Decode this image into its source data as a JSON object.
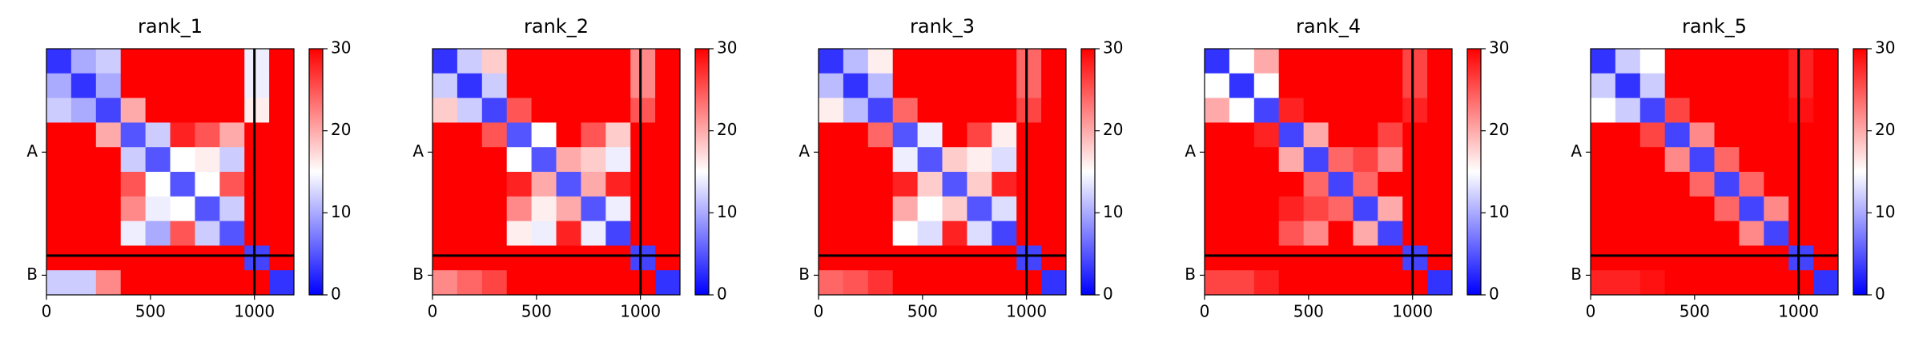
{
  "chart_data": [
    {
      "type": "heatmap",
      "title": "rank_1",
      "xlim": [
        0,
        1190
      ],
      "ylim": [
        1190,
        0
      ],
      "xticks": [
        0,
        500,
        1000
      ],
      "yticks": [
        {
          "value": 500,
          "label": "A"
        },
        {
          "value": 1095,
          "label": "B"
        }
      ],
      "dividers": [
        1000
      ],
      "colormap": [
        "#0000ff",
        "#ffffff",
        "#ff0000"
      ],
      "clim": [
        0,
        30
      ],
      "cticks": [
        0,
        10,
        20,
        30
      ],
      "values": [
        [
          3,
          10,
          12,
          30,
          30,
          30,
          30,
          30,
          14,
          30
        ],
        [
          10,
          3,
          10,
          30,
          30,
          30,
          30,
          30,
          14,
          30
        ],
        [
          12,
          10,
          4,
          20,
          30,
          30,
          30,
          30,
          16,
          30
        ],
        [
          30,
          30,
          20,
          5,
          12,
          28,
          25,
          20,
          30,
          30
        ],
        [
          30,
          30,
          30,
          12,
          5,
          15,
          16,
          12,
          30,
          30
        ],
        [
          30,
          30,
          30,
          25,
          15,
          5,
          15,
          25,
          30,
          30
        ],
        [
          30,
          30,
          30,
          22,
          14,
          15,
          5,
          12,
          30,
          30
        ],
        [
          30,
          30,
          30,
          14,
          10,
          25,
          12,
          5,
          30,
          30
        ],
        [
          30,
          30,
          30,
          30,
          30,
          30,
          30,
          30,
          4,
          30
        ],
        [
          12,
          12,
          22,
          30,
          30,
          30,
          30,
          30,
          30,
          3
        ]
      ]
    },
    {
      "type": "heatmap",
      "title": "rank_2",
      "xlim": [
        0,
        1190
      ],
      "ylim": [
        1190,
        0
      ],
      "xticks": [
        0,
        500,
        1000
      ],
      "yticks": [
        {
          "value": 500,
          "label": "A"
        },
        {
          "value": 1095,
          "label": "B"
        }
      ],
      "dividers": [
        1000
      ],
      "colormap": [
        "#0000ff",
        "#ffffff",
        "#ff0000"
      ],
      "clim": [
        0,
        30
      ],
      "cticks": [
        0,
        10,
        20,
        30
      ],
      "values": [
        [
          3,
          12,
          18,
          30,
          30,
          30,
          30,
          30,
          22,
          30
        ],
        [
          12,
          3,
          12,
          30,
          30,
          30,
          30,
          30,
          22,
          30
        ],
        [
          18,
          12,
          4,
          25,
          30,
          30,
          30,
          30,
          25,
          30
        ],
        [
          30,
          30,
          25,
          5,
          15,
          30,
          25,
          18,
          30,
          30
        ],
        [
          30,
          30,
          30,
          15,
          5,
          20,
          18,
          14,
          30,
          30
        ],
        [
          30,
          30,
          30,
          28,
          20,
          5,
          20,
          28,
          30,
          30
        ],
        [
          30,
          30,
          30,
          22,
          16,
          20,
          5,
          14,
          30,
          30
        ],
        [
          30,
          30,
          30,
          16,
          14,
          28,
          14,
          4,
          30,
          30
        ],
        [
          30,
          30,
          30,
          30,
          30,
          30,
          30,
          30,
          4,
          30
        ],
        [
          22,
          24,
          26,
          30,
          30,
          30,
          30,
          30,
          30,
          3
        ]
      ]
    },
    {
      "type": "heatmap",
      "title": "rank_3",
      "xlim": [
        0,
        1190
      ],
      "ylim": [
        1190,
        0
      ],
      "xticks": [
        0,
        500,
        1000
      ],
      "yticks": [
        {
          "value": 500,
          "label": "A"
        },
        {
          "value": 1095,
          "label": "B"
        }
      ],
      "dividers": [
        1000
      ],
      "colormap": [
        "#0000ff",
        "#ffffff",
        "#ff0000"
      ],
      "clim": [
        0,
        30
      ],
      "cticks": [
        0,
        10,
        20,
        30
      ],
      "values": [
        [
          3,
          11,
          16,
          30,
          30,
          30,
          30,
          30,
          24,
          30
        ],
        [
          11,
          3,
          11,
          30,
          30,
          30,
          30,
          30,
          24,
          30
        ],
        [
          16,
          11,
          4,
          24,
          30,
          30,
          30,
          30,
          26,
          30
        ],
        [
          30,
          30,
          24,
          5,
          14,
          30,
          26,
          16,
          30,
          30
        ],
        [
          30,
          30,
          30,
          14,
          5,
          18,
          16,
          13,
          30,
          30
        ],
        [
          30,
          30,
          30,
          28,
          18,
          5,
          18,
          28,
          30,
          30
        ],
        [
          30,
          30,
          30,
          20,
          15,
          18,
          5,
          13,
          30,
          30
        ],
        [
          30,
          30,
          30,
          15,
          13,
          28,
          13,
          4,
          30,
          30
        ],
        [
          30,
          30,
          30,
          30,
          30,
          30,
          30,
          30,
          4,
          30
        ],
        [
          24,
          25,
          27,
          30,
          30,
          30,
          30,
          30,
          30,
          3
        ]
      ]
    },
    {
      "type": "heatmap",
      "title": "rank_4",
      "xlim": [
        0,
        1190
      ],
      "ylim": [
        1190,
        0
      ],
      "xticks": [
        0,
        500,
        1000
      ],
      "yticks": [
        {
          "value": 500,
          "label": "A"
        },
        {
          "value": 1095,
          "label": "B"
        }
      ],
      "dividers": [
        1000
      ],
      "colormap": [
        "#0000ff",
        "#ffffff",
        "#ff0000"
      ],
      "clim": [
        0,
        30
      ],
      "cticks": [
        0,
        10,
        20,
        30
      ],
      "values": [
        [
          3,
          15,
          20,
          30,
          30,
          30,
          30,
          30,
          26,
          30
        ],
        [
          15,
          3,
          15,
          30,
          30,
          30,
          30,
          30,
          26,
          30
        ],
        [
          20,
          15,
          4,
          28,
          30,
          30,
          30,
          30,
          28,
          30
        ],
        [
          30,
          30,
          28,
          4,
          20,
          30,
          30,
          26,
          30,
          30
        ],
        [
          30,
          30,
          30,
          20,
          4,
          24,
          26,
          22,
          30,
          30
        ],
        [
          30,
          30,
          30,
          30,
          24,
          4,
          24,
          30,
          30,
          30
        ],
        [
          30,
          30,
          30,
          28,
          26,
          24,
          4,
          20,
          30,
          30
        ],
        [
          30,
          30,
          30,
          25,
          22,
          30,
          20,
          4,
          30,
          30
        ],
        [
          30,
          30,
          30,
          30,
          30,
          30,
          30,
          30,
          4,
          30
        ],
        [
          26,
          26,
          28,
          30,
          30,
          30,
          30,
          30,
          30,
          3
        ]
      ]
    },
    {
      "type": "heatmap",
      "title": "rank_5",
      "xlim": [
        0,
        1190
      ],
      "ylim": [
        1190,
        0
      ],
      "xticks": [
        0,
        500,
        1000
      ],
      "yticks": [
        {
          "value": 500,
          "label": "A"
        },
        {
          "value": 1095,
          "label": "B"
        }
      ],
      "dividers": [
        1000
      ],
      "colormap": [
        "#0000ff",
        "#ffffff",
        "#ff0000"
      ],
      "clim": [
        0,
        30
      ],
      "cticks": [
        0,
        10,
        20,
        30
      ],
      "values": [
        [
          3,
          12,
          15,
          30,
          30,
          30,
          30,
          30,
          28,
          30
        ],
        [
          12,
          3,
          12,
          30,
          30,
          30,
          30,
          30,
          28,
          30
        ],
        [
          15,
          12,
          4,
          26,
          30,
          30,
          30,
          30,
          29,
          30
        ],
        [
          30,
          30,
          26,
          4,
          22,
          30,
          30,
          30,
          30,
          30
        ],
        [
          30,
          30,
          30,
          22,
          4,
          24,
          30,
          30,
          30,
          30
        ],
        [
          30,
          30,
          30,
          30,
          24,
          4,
          24,
          30,
          30,
          30
        ],
        [
          30,
          30,
          30,
          30,
          30,
          24,
          4,
          22,
          30,
          30
        ],
        [
          30,
          30,
          30,
          30,
          30,
          30,
          22,
          4,
          30,
          30
        ],
        [
          30,
          30,
          30,
          30,
          30,
          30,
          30,
          30,
          4,
          30
        ],
        [
          28,
          28,
          29,
          30,
          30,
          30,
          30,
          30,
          30,
          3
        ]
      ]
    }
  ]
}
